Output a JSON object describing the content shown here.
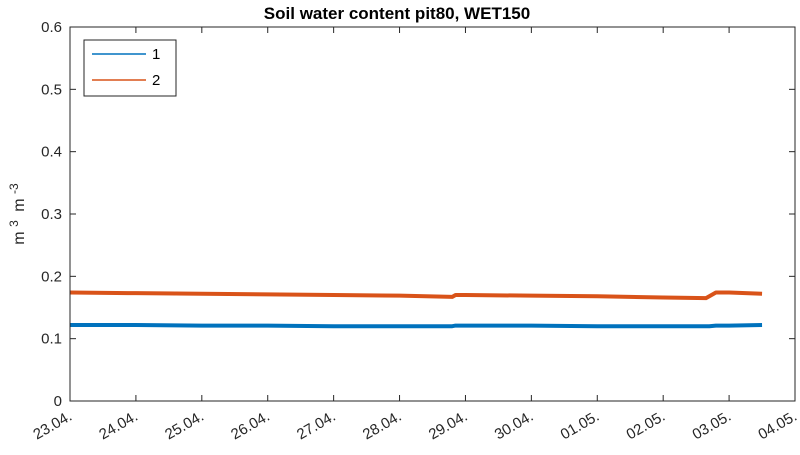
{
  "chart_data": {
    "type": "line",
    "title": "Soil water content pit80, WET150",
    "ylabel": "m 3 m -3",
    "ylabel_parts": {
      "base1": "m",
      "sup1": "3",
      "base2": "m",
      "sup2": "-3"
    },
    "xlabel": "",
    "ylim": [
      0,
      0.6
    ],
    "y_ticks": [
      0,
      0.1,
      0.2,
      0.3,
      0.4,
      0.5,
      0.6
    ],
    "y_tick_labels": [
      "0",
      "0.1",
      "0.2",
      "0.3",
      "0.4",
      "0.5",
      "0.6"
    ],
    "x_tick_labels": [
      "23.04.",
      "24.04.",
      "25.04.",
      "26.04.",
      "27.04.",
      "28.04.",
      "29.04.",
      "30.04.",
      "01.05.",
      "02.05.",
      "03.05.",
      "04.05."
    ],
    "xlim": [
      0,
      11
    ],
    "legend_position": "top-left",
    "grid": false,
    "series": [
      {
        "name": "1",
        "color": "#0072BD",
        "x": [
          0,
          1,
          2,
          3,
          4,
          5,
          5.8,
          5.85,
          6,
          7,
          8,
          9,
          9.7,
          9.8,
          10,
          10.5
        ],
        "y": [
          0.122,
          0.122,
          0.121,
          0.121,
          0.12,
          0.12,
          0.12,
          0.121,
          0.121,
          0.121,
          0.12,
          0.12,
          0.12,
          0.121,
          0.121,
          0.122
        ]
      },
      {
        "name": "2",
        "color": "#D95319",
        "x": [
          0,
          1,
          2,
          3,
          4,
          5,
          5.8,
          5.85,
          6,
          7,
          8,
          9,
          9.65,
          9.8,
          10,
          10.5
        ],
        "y": [
          0.174,
          0.173,
          0.172,
          0.171,
          0.17,
          0.169,
          0.167,
          0.17,
          0.17,
          0.169,
          0.168,
          0.166,
          0.165,
          0.174,
          0.174,
          0.172
        ]
      }
    ]
  }
}
